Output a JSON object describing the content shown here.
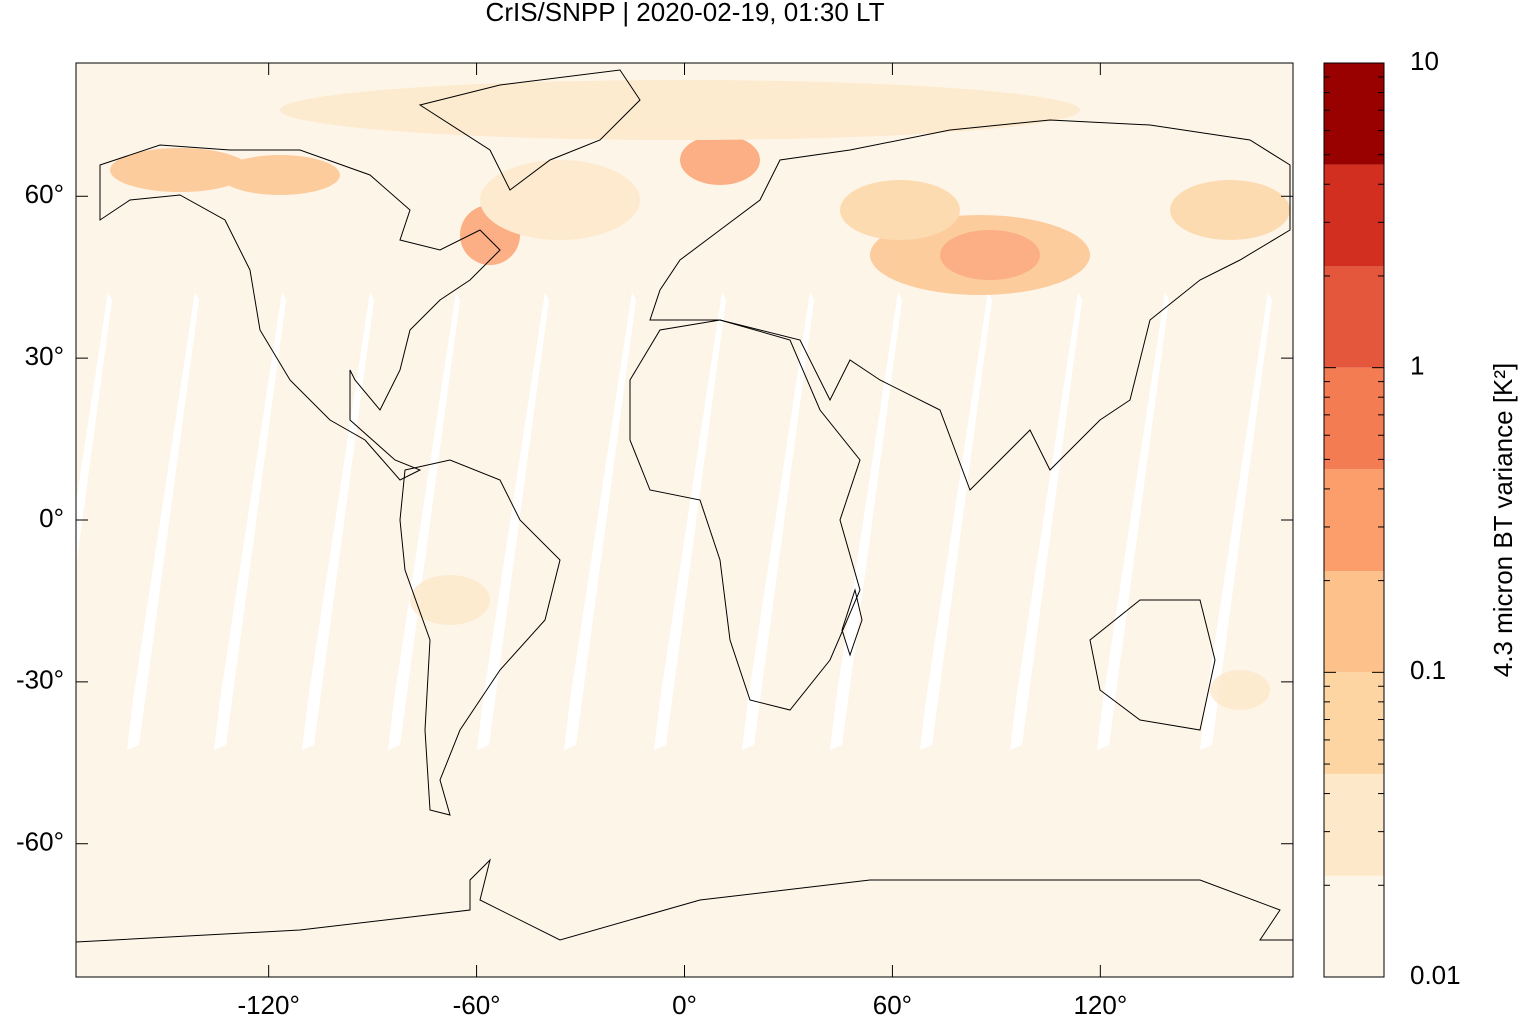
{
  "chart_data": {
    "type": "map",
    "title": "CrIS/SNPP | 2020-02-19, 01:30 LT",
    "xlim": [
      -175.6,
      175.6
    ],
    "ylim": [
      -84.7,
      84.7
    ],
    "xticks": [
      {
        "value": -120,
        "label": "-120°"
      },
      {
        "value": -60,
        "label": "-60°"
      },
      {
        "value": 0,
        "label": "0°"
      },
      {
        "value": 60,
        "label": "60°"
      },
      {
        "value": 120,
        "label": "120°"
      }
    ],
    "yticks": [
      {
        "value": -60,
        "label": "-60°"
      },
      {
        "value": -30,
        "label": "-30°"
      },
      {
        "value": 0,
        "label": "0°"
      },
      {
        "value": 30,
        "label": "30°"
      },
      {
        "value": 60,
        "label": "60°"
      }
    ],
    "colorbar": {
      "label": "4.3 micron BT variance [K²]",
      "scale": "log",
      "lim": [
        0.01,
        10
      ],
      "ticks": [
        0.01,
        0.1,
        1,
        10
      ],
      "minor_ticks": [
        0.02,
        0.03,
        0.04,
        0.05,
        0.06,
        0.07,
        0.08,
        0.09,
        0.2,
        0.3,
        0.4,
        0.5,
        0.6,
        0.7,
        0.8,
        0.9,
        2,
        3,
        4,
        5,
        6,
        7,
        8,
        9
      ],
      "levels": [
        0.01,
        0.0215,
        0.0464,
        0.1,
        0.215,
        0.464,
        1,
        2.15,
        4.64,
        10
      ],
      "colors": [
        "#fef5e9",
        "#fde8c9",
        "#fdd5a3",
        "#fdc28b",
        "#fc9e6b",
        "#f47c53",
        "#e5573d",
        "#d32f20",
        "#990000"
      ]
    }
  }
}
